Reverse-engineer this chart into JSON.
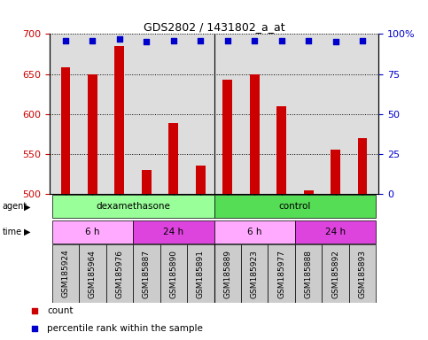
{
  "title": "GDS2802 / 1431802_a_at",
  "samples": [
    "GSM185924",
    "GSM185964",
    "GSM185976",
    "GSM185887",
    "GSM185890",
    "GSM185891",
    "GSM185889",
    "GSM185923",
    "GSM185977",
    "GSM185888",
    "GSM185892",
    "GSM185893"
  ],
  "counts": [
    658,
    650,
    685,
    530,
    588,
    535,
    643,
    650,
    610,
    504,
    555,
    570
  ],
  "percentile_ranks": [
    96,
    96,
    97,
    95,
    96,
    96,
    96,
    96,
    96,
    96,
    95,
    96
  ],
  "ylim_left": [
    500,
    700
  ],
  "ylim_right": [
    0,
    100
  ],
  "yticks_left": [
    500,
    550,
    600,
    650,
    700
  ],
  "yticks_right": [
    0,
    25,
    50,
    75,
    100
  ],
  "bar_color": "#cc0000",
  "dot_color": "#0000cc",
  "grid_color": "#000000",
  "agent_row": [
    {
      "label": "dexamethasone",
      "start": 0,
      "end": 6,
      "color": "#99ff99"
    },
    {
      "label": "control",
      "start": 6,
      "end": 12,
      "color": "#55dd55"
    }
  ],
  "time_row": [
    {
      "label": "6 h",
      "start": 0,
      "end": 3,
      "color": "#ffaaff"
    },
    {
      "label": "24 h",
      "start": 3,
      "end": 6,
      "color": "#dd44dd"
    },
    {
      "label": "6 h",
      "start": 6,
      "end": 9,
      "color": "#ffaaff"
    },
    {
      "label": "24 h",
      "start": 9,
      "end": 12,
      "color": "#dd44dd"
    }
  ],
  "legend_count_color": "#cc0000",
  "legend_pct_color": "#0000cc",
  "tick_label_color_left": "#cc0000",
  "tick_label_color_right": "#0000cc",
  "bg_color": "#ffffff",
  "plot_bg_color": "#dddddd",
  "label_bg_color": "#cccccc",
  "bar_width": 0.35
}
